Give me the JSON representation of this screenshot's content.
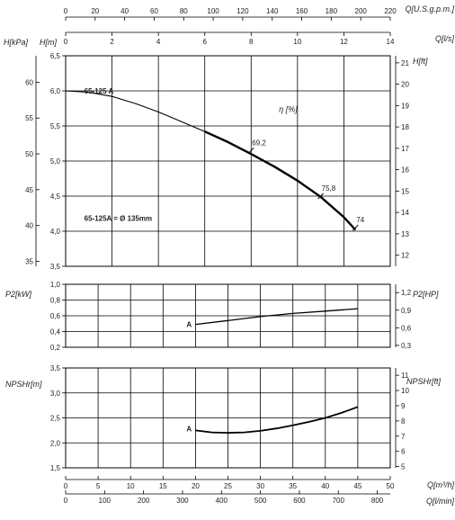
{
  "chart_data": [
    {
      "id": "head",
      "type": "line",
      "xlabel": "Q[l/s]",
      "x_range": [
        0,
        14
      ],
      "x_ticks": [
        0,
        2,
        4,
        6,
        8,
        10,
        12,
        14
      ],
      "x_ticks_labels": [
        "0",
        "2",
        "4",
        "6",
        "8",
        "10",
        "12",
        "14"
      ],
      "x2label": "Q[U.S.g.p.m.]",
      "x2_range": [
        0,
        220
      ],
      "x2_ticks": [
        0,
        20,
        40,
        60,
        80,
        100,
        120,
        140,
        160,
        180,
        200,
        220
      ],
      "x2_ticks_labels": [
        "0",
        "20",
        "40",
        "60",
        "80",
        "100",
        "120",
        "140",
        "160",
        "180",
        "200",
        "220"
      ],
      "ylabel": "H[m]",
      "ylim": [
        3.5,
        6.5
      ],
      "y_ticks": [
        3.5,
        4.0,
        4.5,
        5.0,
        5.5,
        6.0,
        6.5
      ],
      "y_ticks_labels": [
        "3,5",
        "4,0",
        "4,5",
        "5,0",
        "5,5",
        "6,0",
        "6,5"
      ],
      "y_kpa_label": "H[kPa]",
      "y_kpa_range": [
        34.3,
        63.7
      ],
      "y_kpa_ticks": [
        35,
        40,
        45,
        50,
        55,
        60
      ],
      "y_kpa_ticks_labels": [
        "35",
        "40",
        "45",
        "50",
        "55",
        "60"
      ],
      "y_ft_label": "H[ft]",
      "y_ft_range": [
        11.48,
        21.33
      ],
      "y_ft_ticks": [
        12,
        13,
        14,
        15,
        16,
        17,
        18,
        19,
        20,
        21
      ],
      "y_ft_ticks_labels": [
        "12",
        "13",
        "14",
        "15",
        "16",
        "17",
        "18",
        "19",
        "20",
        "21"
      ],
      "grid": true,
      "series": [
        {
          "name": "65-125 A",
          "x": [
            0,
            1,
            2,
            3,
            4,
            5,
            6,
            7,
            8,
            9,
            10,
            11,
            12,
            12.5
          ],
          "y": [
            6.0,
            5.98,
            5.92,
            5.82,
            5.7,
            5.56,
            5.42,
            5.27,
            5.1,
            4.92,
            4.72,
            4.49,
            4.2,
            4.02
          ]
        }
      ],
      "efficiency_label": "η [%]",
      "annotations": [
        {
          "text": "69,2",
          "x": 8.0,
          "y": 5.15
        },
        {
          "text": "75,8",
          "x": 11.0,
          "y": 4.5
        },
        {
          "text": "74",
          "x": 12.5,
          "y": 4.05
        }
      ],
      "diameter_note": "65-125A = Ø 135mm"
    },
    {
      "id": "power",
      "type": "line",
      "ylabel": "P2[kW]",
      "ylim": [
        0.2,
        1.0
      ],
      "y_ticks": [
        0.2,
        0.4,
        0.6,
        0.8,
        1.0
      ],
      "y_ticks_labels": [
        "0,2",
        "0,4",
        "0,6",
        "0,8",
        "1,0"
      ],
      "y_hp_label": "P2[HP]",
      "y_hp_range": [
        0.268,
        1.341
      ],
      "y_hp_ticks": [
        0.3,
        0.6,
        0.9,
        1.2
      ],
      "y_hp_ticks_labels": [
        "0,3",
        "0,6",
        "0,9",
        "1,2"
      ],
      "grid": true,
      "series": [
        {
          "name": "A",
          "x": [
            20,
            25,
            30,
            35,
            40,
            45
          ],
          "y": [
            0.49,
            0.54,
            0.59,
            0.63,
            0.66,
            0.69
          ]
        }
      ]
    },
    {
      "id": "npsh",
      "type": "line",
      "xlabel": "Q[m³/h]",
      "x_range": [
        0,
        50
      ],
      "x_ticks": [
        0,
        5,
        10,
        15,
        20,
        25,
        30,
        35,
        40,
        45,
        50
      ],
      "x_ticks_labels": [
        "0",
        "5",
        "10",
        "15",
        "20",
        "25",
        "30",
        "35",
        "40",
        "45",
        "50"
      ],
      "x2label": "Q[l/min]",
      "x2_range": [
        0,
        833.3
      ],
      "x2_ticks": [
        0,
        100,
        200,
        300,
        400,
        500,
        600,
        700,
        800
      ],
      "x2_ticks_labels": [
        "0",
        "100",
        "200",
        "300",
        "400",
        "500",
        "600",
        "700",
        "800"
      ],
      "ylabel": "NPSHr[m]",
      "ylim": [
        1.5,
        3.5
      ],
      "y_ticks": [
        1.5,
        2.0,
        2.5,
        3.0,
        3.5
      ],
      "y_ticks_labels": [
        "1,5",
        "2,0",
        "2,5",
        "3,0",
        "3,5"
      ],
      "y_ft_label": "NPSHr[ft]",
      "y_ft_range": [
        4.92,
        11.48
      ],
      "y_ft_ticks": [
        5,
        6,
        7,
        8,
        9,
        10,
        11
      ],
      "y_ft_ticks_labels": [
        "5",
        "6",
        "7",
        "8",
        "9",
        "10",
        "11"
      ],
      "grid": true,
      "series": [
        {
          "name": "A",
          "x": [
            20,
            22.5,
            25,
            27.5,
            30,
            32.5,
            35,
            37.5,
            40,
            42.5,
            45
          ],
          "y": [
            2.25,
            2.21,
            2.2,
            2.21,
            2.24,
            2.29,
            2.35,
            2.42,
            2.5,
            2.6,
            2.72
          ]
        }
      ]
    }
  ]
}
